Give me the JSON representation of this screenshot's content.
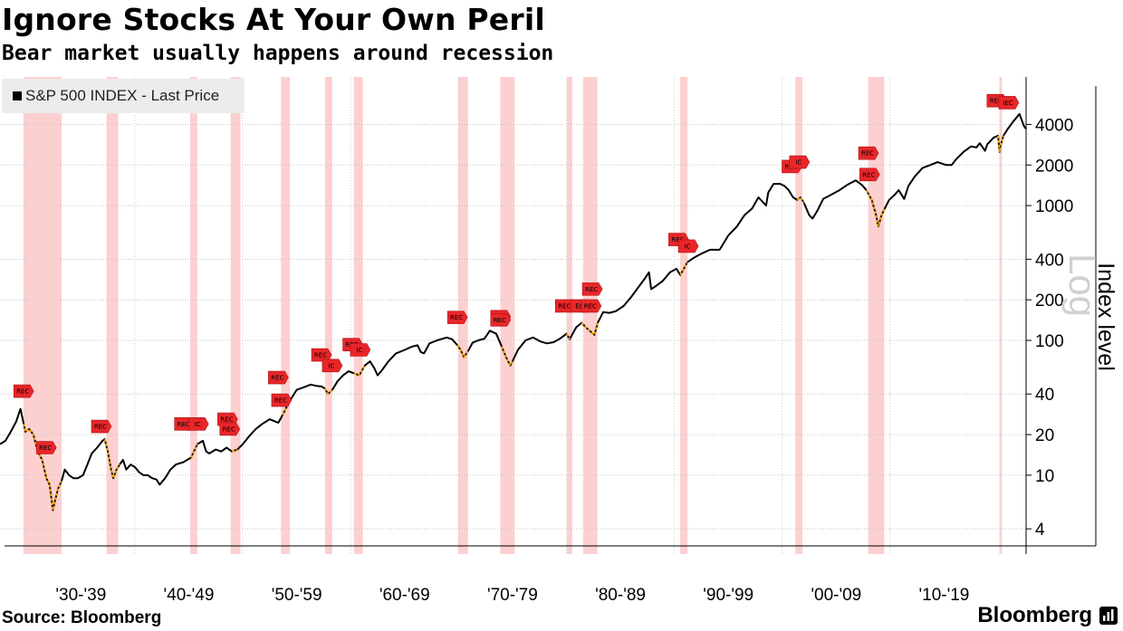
{
  "header": {
    "title": "Ignore Stocks At Your Own Peril",
    "subtitle": "Bear market usually happens around recession"
  },
  "legend": {
    "label": "S&P 500 INDEX - Last Price"
  },
  "footer": {
    "source": "Source: Bloomberg",
    "brand": "Bloomberg"
  },
  "chart_data": {
    "type": "line",
    "title": "Ignore Stocks At Your Own Peril",
    "subtitle": "Bear market usually happens around recession",
    "ylabel": "Index level",
    "yscale": "log",
    "yscale_label": "Log",
    "yticks": [
      4,
      10,
      20,
      40,
      100,
      200,
      400,
      1000,
      2000,
      4000
    ],
    "ylim": [
      2.6,
      9000
    ],
    "xlim": [
      1927.5,
      2022.6
    ],
    "xtick_labels": [
      "'30-'39",
      "'40-'49",
      "'50-'59",
      "'60-'69",
      "'70-'79",
      "'80-'89",
      "'90-'99",
      "'00-'09",
      "'10-'19"
    ],
    "xtick_centers": [
      1935,
      1945,
      1955,
      1965,
      1975,
      1985,
      1995,
      2005,
      2015
    ],
    "grid": "horizontal dotted",
    "legend_position": "top-left",
    "series": [
      {
        "name": "S&P 500 INDEX - Last Price",
        "color": "#000000",
        "x": [
          1927.5,
          1928.0,
          1928.5,
          1929.0,
          1929.4,
          1929.7,
          1929.85,
          1930.2,
          1930.6,
          1931.0,
          1931.4,
          1931.8,
          1932.1,
          1932.4,
          1932.6,
          1932.9,
          1933.2,
          1933.5,
          1933.9,
          1934.3,
          1934.7,
          1935.2,
          1935.6,
          1936.0,
          1936.5,
          1937.0,
          1937.2,
          1937.5,
          1937.8,
          1938.0,
          1938.3,
          1938.6,
          1938.9,
          1939.2,
          1939.6,
          1940.0,
          1940.4,
          1940.8,
          1941.2,
          1941.6,
          1942.0,
          1942.3,
          1942.8,
          1943.3,
          1943.8,
          1944.5,
          1945.2,
          1945.8,
          1946.3,
          1946.6,
          1946.9,
          1947.5,
          1948.0,
          1948.5,
          1949.0,
          1949.5,
          1950.0,
          1950.6,
          1951.2,
          1951.8,
          1952.5,
          1953.0,
          1953.3,
          1953.7,
          1954.3,
          1955.0,
          1955.7,
          1956.3,
          1956.8,
          1957.3,
          1957.6,
          1957.9,
          1958.3,
          1958.8,
          1959.3,
          1959.8,
          1960.3,
          1960.8,
          1961.3,
          1961.8,
          1962.2,
          1962.5,
          1962.9,
          1963.5,
          1964.2,
          1965.0,
          1965.7,
          1966.2,
          1966.5,
          1966.8,
          1967.3,
          1968.0,
          1968.9,
          1969.4,
          1969.9,
          1970.2,
          1970.5,
          1970.9,
          1971.3,
          1971.8,
          1972.4,
          1972.9,
          1973.5,
          1974.0,
          1974.4,
          1974.8,
          1975.0,
          1975.5,
          1976.2,
          1976.9,
          1977.6,
          1978.2,
          1978.8,
          1979.4,
          1980.0,
          1980.3,
          1980.9,
          1981.4,
          1981.8,
          1982.3,
          1982.6,
          1982.9,
          1983.4,
          1984.0,
          1984.6,
          1985.3,
          1986.0,
          1986.7,
          1987.3,
          1987.65,
          1987.85,
          1988.2,
          1988.9,
          1989.6,
          1990.2,
          1990.55,
          1990.8,
          1991.2,
          1991.8,
          1992.5,
          1993.3,
          1994.2,
          1995.0,
          1995.8,
          1996.5,
          1997.2,
          1997.8,
          1998.5,
          1998.7,
          1999.2,
          1999.8,
          2000.2,
          2000.6,
          2001.0,
          2001.4,
          2001.7,
          2002.0,
          2002.5,
          2002.8,
          2003.2,
          2003.8,
          2004.5,
          2005.3,
          2006.0,
          2006.8,
          2007.4,
          2007.8,
          2008.3,
          2008.7,
          2008.9,
          2009.2,
          2009.5,
          2009.9,
          2010.4,
          2010.8,
          2011.3,
          2011.7,
          2012.3,
          2013.0,
          2013.7,
          2014.4,
          2015.2,
          2015.7,
          2016.1,
          2016.8,
          2017.5,
          2018.0,
          2018.3,
          2018.8,
          2019.0,
          2019.6,
          2020.0,
          2020.15,
          2020.22,
          2020.5,
          2020.9,
          2021.4,
          2021.99,
          2022.2,
          2022.4,
          2022.6
        ],
        "y": [
          17,
          18,
          21,
          25,
          31,
          24,
          21,
          22,
          20,
          15,
          13,
          9.5,
          8.5,
          5.5,
          6.5,
          8,
          9,
          11,
          10,
          9.5,
          9.5,
          10,
          12,
          14.5,
          16,
          18,
          18.5,
          15,
          11,
          9.5,
          11,
          12,
          13,
          11,
          12,
          11.5,
          10.5,
          10,
          10,
          9.5,
          9.3,
          8.5,
          9.5,
          11,
          12,
          12.5,
          13.5,
          17,
          18,
          15,
          14.5,
          15.5,
          15,
          16,
          15,
          15.5,
          17,
          19.5,
          22,
          24,
          26,
          25,
          24.5,
          28,
          35,
          43,
          45,
          47,
          46,
          45.5,
          44,
          40,
          43,
          50,
          55,
          59,
          57,
          55,
          65,
          70,
          62,
          55,
          60,
          70,
          80,
          85,
          90,
          92,
          82,
          80,
          95,
          100,
          105,
          102,
          92,
          85,
          75,
          84,
          96,
          100,
          103,
          118,
          112,
          90,
          75,
          65,
          70,
          85,
          100,
          105,
          98,
          95,
          97,
          103,
          112,
          102,
          125,
          135,
          125,
          115,
          110,
          135,
          162,
          160,
          165,
          180,
          210,
          250,
          290,
          320,
          240,
          250,
          275,
          320,
          340,
          305,
          330,
          380,
          410,
          440,
          470,
          470,
          600,
          700,
          850,
          950,
          1150,
          1000,
          1250,
          1450,
          1450,
          1400,
          1300,
          1150,
          1100,
          1150,
          1050,
          850,
          800,
          900,
          1120,
          1200,
          1300,
          1420,
          1540,
          1420,
          1300,
          1100,
          850,
          700,
          850,
          950,
          1100,
          1200,
          1300,
          1120,
          1400,
          1650,
          1900,
          2000,
          2100,
          2000,
          2000,
          2200,
          2500,
          2750,
          2700,
          2900,
          2550,
          2850,
          3200,
          3300,
          2500,
          2750,
          3300,
          3700,
          4200,
          4780,
          4300,
          3900,
          3700
        ]
      }
    ],
    "recessions": [
      [
        1929.67,
        1933.21
      ],
      [
        1937.37,
        1938.46
      ],
      [
        1945.12,
        1945.79
      ],
      [
        1948.87,
        1949.79
      ],
      [
        1953.54,
        1954.38
      ],
      [
        1957.62,
        1958.29
      ],
      [
        1960.29,
        1961.13
      ],
      [
        1969.96,
        1970.87
      ],
      [
        1973.87,
        1975.21
      ],
      [
        1980.04,
        1980.54
      ],
      [
        1981.54,
        1982.87
      ],
      [
        1990.54,
        1991.21
      ],
      [
        2001.21,
        2001.87
      ],
      [
        2007.96,
        2009.46
      ],
      [
        2020.12,
        2020.37
      ]
    ],
    "annotations": [
      {
        "x": 1929.7,
        "y": 42,
        "text": "REC"
      },
      {
        "x": 1931.8,
        "y": 16,
        "text": "REC"
      },
      {
        "x": 1936.9,
        "y": 23,
        "text": "REC"
      },
      {
        "x": 1944.6,
        "y": 24,
        "text": "REC"
      },
      {
        "x": 1945.9,
        "y": 24,
        "text": "IC"
      },
      {
        "x": 1948.6,
        "y": 26,
        "text": "REC"
      },
      {
        "x": 1948.8,
        "y": 22,
        "text": "REC"
      },
      {
        "x": 1953.3,
        "y": 53,
        "text": "REC"
      },
      {
        "x": 1953.6,
        "y": 36,
        "text": "REC"
      },
      {
        "x": 1957.3,
        "y": 78,
        "text": "REC"
      },
      {
        "x": 1958.3,
        "y": 65,
        "text": "IC"
      },
      {
        "x": 1960.2,
        "y": 93,
        "text": "REC"
      },
      {
        "x": 1960.9,
        "y": 85,
        "text": "IC"
      },
      {
        "x": 1969.9,
        "y": 148,
        "text": "REC"
      },
      {
        "x": 1973.9,
        "y": 150,
        "text": "R"
      },
      {
        "x": 1973.9,
        "y": 142,
        "text": "REC"
      },
      {
        "x": 1979.9,
        "y": 180,
        "text": "REC"
      },
      {
        "x": 1981.3,
        "y": 180,
        "text": "EC"
      },
      {
        "x": 1982.3,
        "y": 180,
        "text": "REC"
      },
      {
        "x": 1982.4,
        "y": 240,
        "text": "REC"
      },
      {
        "x": 1990.4,
        "y": 560,
        "text": "REC"
      },
      {
        "x": 1991.3,
        "y": 500,
        "text": "IC"
      },
      {
        "x": 2000.9,
        "y": 1950,
        "text": "REC"
      },
      {
        "x": 2001.6,
        "y": 2100,
        "text": "IC"
      },
      {
        "x": 2008.0,
        "y": 2450,
        "text": "REC"
      },
      {
        "x": 2008.1,
        "y": 1700,
        "text": "REC"
      },
      {
        "x": 2019.9,
        "y": 6000,
        "text": "REC"
      },
      {
        "x": 2021.0,
        "y": 5800,
        "text": "IEC"
      }
    ]
  }
}
